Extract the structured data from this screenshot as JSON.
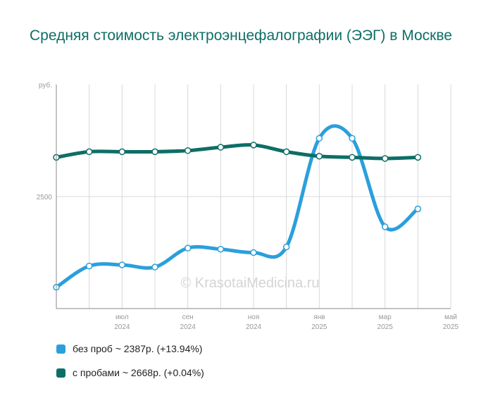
{
  "title": "Средняя стоимость электроэнцефалографии (ЭЭГ) в Москве",
  "watermark": "© KrasotaiMedicina.ru",
  "colors": {
    "series1": "#2b9fdc",
    "series2": "#0e6e66",
    "grid": "#d8d8d8",
    "axis": "#888888"
  },
  "chart_data": {
    "type": "line",
    "y_unit": "руб.",
    "y_ticks": [
      2500
    ],
    "ylim": [
      1500,
      3500
    ],
    "x_months": [
      "2024-05",
      "2024-06",
      "2024-07",
      "2024-08",
      "2024-09",
      "2024-10",
      "2024-11",
      "2024-12",
      "2025-01",
      "2025-02",
      "2025-03",
      "2025-04",
      "2025-05"
    ],
    "x_tick_labels": [
      {
        "month": "2024-07",
        "label": "июл",
        "year": "2024"
      },
      {
        "month": "2024-09",
        "label": "сен",
        "year": "2024"
      },
      {
        "month": "2024-11",
        "label": "ноя",
        "year": "2024"
      },
      {
        "month": "2025-01",
        "label": "янв",
        "year": "2025"
      },
      {
        "month": "2025-03",
        "label": "мар",
        "year": "2025"
      },
      {
        "month": "2025-05",
        "label": "май",
        "year": "2025"
      }
    ],
    "series": [
      {
        "name": "без проб",
        "legend": "без проб ~ 2387р. (+13.94%)",
        "values": [
          1690,
          1880,
          1890,
          1870,
          2040,
          2030,
          2000,
          2050,
          3020,
          3020,
          2230,
          2390,
          null
        ]
      },
      {
        "name": "с пробами",
        "legend": "с пробами ~ 2668р. (+0.04%)",
        "values": [
          2850,
          2900,
          2900,
          2900,
          2910,
          2940,
          2960,
          2900,
          2860,
          2850,
          2840,
          2850,
          null
        ]
      }
    ],
    "grid": true
  }
}
